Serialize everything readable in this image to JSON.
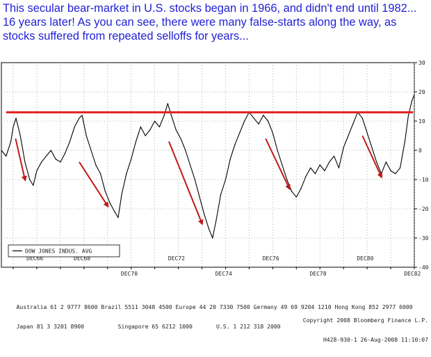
{
  "headline": {
    "line1": "This secular bear-market in U.S. stocks began in 1966, and didn't end until 1982...",
    "line2": "16 years later! As you can see, there were many false-starts along the way, as",
    "line3": "stocks suffered from repeated selloffs for years..."
  },
  "chart_data": {
    "type": "line",
    "x_tick_labels_top": [
      "DEC66",
      "DEC68",
      "DEC72",
      "DEC76",
      "DEC80"
    ],
    "x_tick_labels_bottom": [
      "DEC70",
      "DEC74",
      "DEC78",
      "DEC82"
    ],
    "y_ticks": [
      30,
      20,
      10,
      0,
      -10,
      -20,
      -30,
      -40
    ],
    "ylim": [
      -40,
      30
    ],
    "xlim": [
      1965.5,
      1983.0
    ],
    "legend_label": "DOW JONES INDUS. AVG",
    "legend_position": "bottom-left",
    "series": [
      {
        "name": "DOW JONES INDUS. AVG",
        "color": "#000000",
        "points": [
          [
            1965.5,
            0
          ],
          [
            1965.7,
            -2
          ],
          [
            1965.9,
            3
          ],
          [
            1966.0,
            8
          ],
          [
            1966.12,
            11
          ],
          [
            1966.3,
            5
          ],
          [
            1966.5,
            -4
          ],
          [
            1966.7,
            -10
          ],
          [
            1966.85,
            -12
          ],
          [
            1967.0,
            -7
          ],
          [
            1967.2,
            -4
          ],
          [
            1967.4,
            -2
          ],
          [
            1967.6,
            0
          ],
          [
            1967.8,
            -3
          ],
          [
            1968.0,
            -4
          ],
          [
            1968.2,
            -1
          ],
          [
            1968.4,
            3
          ],
          [
            1968.6,
            8
          ],
          [
            1968.8,
            11
          ],
          [
            1968.92,
            12
          ],
          [
            1969.1,
            5
          ],
          [
            1969.3,
            0
          ],
          [
            1969.5,
            -5
          ],
          [
            1969.7,
            -8
          ],
          [
            1969.9,
            -14
          ],
          [
            1970.1,
            -18
          ],
          [
            1970.3,
            -21
          ],
          [
            1970.45,
            -23
          ],
          [
            1970.6,
            -15
          ],
          [
            1970.8,
            -8
          ],
          [
            1971.0,
            -3
          ],
          [
            1971.2,
            3
          ],
          [
            1971.4,
            8
          ],
          [
            1971.6,
            5
          ],
          [
            1971.8,
            7
          ],
          [
            1972.0,
            10
          ],
          [
            1972.2,
            8
          ],
          [
            1972.4,
            12
          ],
          [
            1972.55,
            16
          ],
          [
            1972.7,
            12
          ],
          [
            1972.9,
            7
          ],
          [
            1973.1,
            4
          ],
          [
            1973.3,
            0
          ],
          [
            1973.5,
            -5
          ],
          [
            1973.7,
            -10
          ],
          [
            1973.9,
            -16
          ],
          [
            1974.1,
            -22
          ],
          [
            1974.3,
            -27
          ],
          [
            1974.45,
            -30
          ],
          [
            1974.6,
            -24
          ],
          [
            1974.8,
            -15
          ],
          [
            1975.0,
            -10
          ],
          [
            1975.2,
            -3
          ],
          [
            1975.4,
            2
          ],
          [
            1975.6,
            6
          ],
          [
            1975.8,
            10
          ],
          [
            1976.0,
            13
          ],
          [
            1976.2,
            11
          ],
          [
            1976.4,
            9
          ],
          [
            1976.6,
            12
          ],
          [
            1976.8,
            10
          ],
          [
            1977.0,
            6
          ],
          [
            1977.2,
            0
          ],
          [
            1977.4,
            -5
          ],
          [
            1977.6,
            -10
          ],
          [
            1977.8,
            -14
          ],
          [
            1978.0,
            -16
          ],
          [
            1978.2,
            -13
          ],
          [
            1978.4,
            -9
          ],
          [
            1978.6,
            -6
          ],
          [
            1978.8,
            -8
          ],
          [
            1979.0,
            -5
          ],
          [
            1979.2,
            -7
          ],
          [
            1979.4,
            -4
          ],
          [
            1979.6,
            -2
          ],
          [
            1979.8,
            -6
          ],
          [
            1980.0,
            1
          ],
          [
            1980.2,
            5
          ],
          [
            1980.4,
            9
          ],
          [
            1980.6,
            13
          ],
          [
            1980.8,
            11
          ],
          [
            1981.0,
            6
          ],
          [
            1981.2,
            1
          ],
          [
            1981.4,
            -4
          ],
          [
            1981.6,
            -8
          ],
          [
            1981.8,
            -4
          ],
          [
            1982.0,
            -7
          ],
          [
            1982.2,
            -8
          ],
          [
            1982.4,
            -6
          ],
          [
            1982.6,
            3
          ],
          [
            1982.75,
            12
          ],
          [
            1982.9,
            17
          ],
          [
            1983.0,
            19
          ]
        ]
      }
    ],
    "annotations": {
      "resistance_line": {
        "y": 13,
        "x_start": 1965.7,
        "x_end": 1982.95,
        "color": "#e02020"
      },
      "arrows": [
        {
          "from": [
            1966.1,
            4
          ],
          "to": [
            1966.5,
            -10
          ],
          "color": "#c01818"
        },
        {
          "from": [
            1968.8,
            -4
          ],
          "to": [
            1970.0,
            -19
          ],
          "color": "#c01818"
        },
        {
          "from": [
            1972.6,
            3
          ],
          "to": [
            1974.0,
            -25
          ],
          "color": "#c01818"
        },
        {
          "from": [
            1976.7,
            4
          ],
          "to": [
            1977.7,
            -13
          ],
          "color": "#c01818"
        },
        {
          "from": [
            1980.8,
            5
          ],
          "to": [
            1981.6,
            -9
          ],
          "color": "#c01818"
        }
      ]
    }
  },
  "footer": {
    "line1": "Australia 61 2 9777 8600 Brazil 5511 3048 4500 Europe 44 20 7330 7500 Germany 49 69 9204 1210 Hong Kong 852 2977 6000",
    "line2_left": "Japan 81 3 3201 8900          Singapore 65 6212 1000       U.S. 1 212 318 2000",
    "line2_right": "Copyright 2008 Bloomberg Finance L.P.",
    "line3_right": "H428-930-1 26-Aug-2008 11:10:07"
  }
}
